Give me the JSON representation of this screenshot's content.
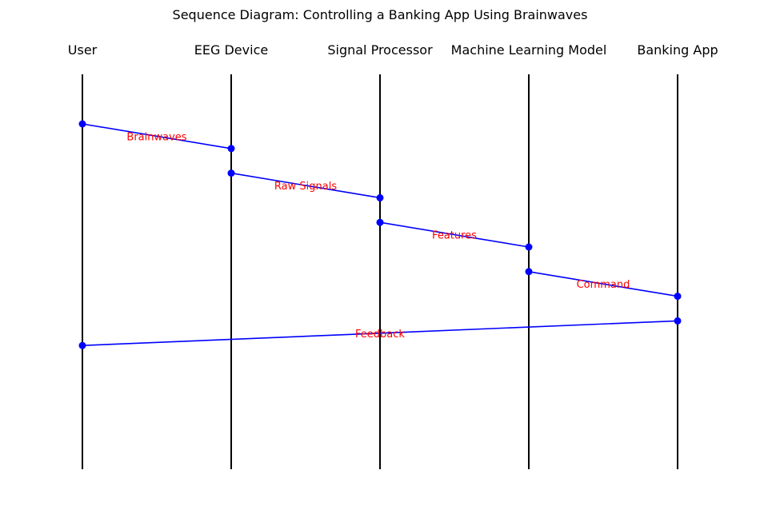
{
  "title": "Sequence Diagram: Controlling a Banking App Using Brainwaves",
  "actors": [
    {
      "id": "user",
      "label": "User"
    },
    {
      "id": "eeg",
      "label": "EEG Device"
    },
    {
      "id": "sp",
      "label": "Signal Processor"
    },
    {
      "id": "ml",
      "label": "Machine Learning Model"
    },
    {
      "id": "app",
      "label": "Banking App"
    }
  ],
  "messages": [
    {
      "from": 0,
      "to": 1,
      "label": "Brainwaves"
    },
    {
      "from": 1,
      "to": 2,
      "label": "Raw Signals"
    },
    {
      "from": 2,
      "to": 3,
      "label": "Features"
    },
    {
      "from": 3,
      "to": 4,
      "label": "Command"
    },
    {
      "from": 4,
      "to": 0,
      "label": "Feedback"
    }
  ],
  "colors": {
    "lifeline": "#000000",
    "arrow": "#0000ff",
    "label": "#ff0000"
  }
}
